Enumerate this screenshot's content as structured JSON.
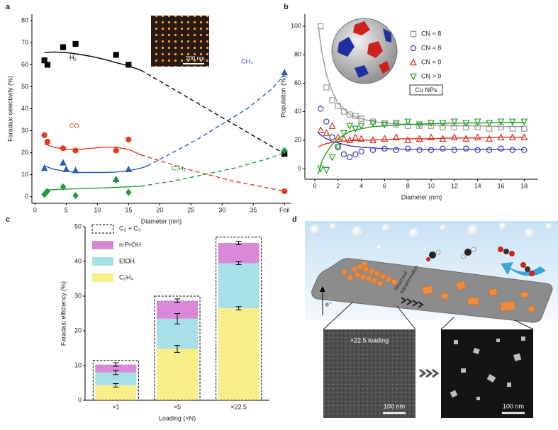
{
  "chart_data": [
    {
      "type": "scatter",
      "label": "a",
      "xlabel": "Diameter (nm)",
      "ylabel": "Faradaic selectivity (%)",
      "xlim": [
        -0.5,
        41
      ],
      "ylim": [
        -3,
        83
      ],
      "xticks": [
        0,
        5,
        10,
        15,
        20,
        25,
        30,
        35,
        {
          "value": 40,
          "label": "Foil"
        }
      ],
      "yticks": [
        0,
        10,
        20,
        30,
        40,
        50,
        60,
        70,
        80
      ],
      "inset_scale_bar": "200 nm",
      "series": [
        {
          "name": "H₂",
          "color": "#000000",
          "marker": "square",
          "filled": true,
          "x": [
            1.5,
            2,
            4.5,
            6.5,
            13,
            15,
            40
          ],
          "values": [
            62,
            60,
            68,
            69.5,
            64.5,
            60,
            19.5
          ],
          "fit": {
            "x": [
              1.5,
              3,
              5,
              7,
              9,
              11,
              13,
              15,
              17
            ],
            "values": [
              65.5,
              65.8,
              65.5,
              64.8,
              63.8,
              62.5,
              61,
              59.5,
              57.5
            ]
          },
          "extrapolation": {
            "x": [
              17,
              40
            ],
            "values": [
              57.5,
              19.5
            ]
          }
        },
        {
          "name": "CO",
          "color": "#e53a20",
          "marker": "circle",
          "filled": true,
          "x": [
            1.5,
            2,
            4.5,
            6.5,
            13,
            15,
            40
          ],
          "values": [
            28,
            25,
            22,
            21,
            21,
            26,
            2.5
          ],
          "fit": {
            "x": [
              1.5,
              3,
              5,
              7,
              9,
              11,
              13,
              15,
              17
            ],
            "values": [
              24,
              22.5,
              21.5,
              21.5,
              22,
              22.5,
              22.5,
              21.5,
              19
            ]
          },
          "extrapolation": {
            "x": [
              17,
              25,
              32,
              40
            ],
            "values": [
              19,
              12,
              7,
              2.5
            ]
          }
        },
        {
          "name": "CH₄",
          "color": "#2b5fb8",
          "marker": "triangle",
          "filled": true,
          "x": [
            1.5,
            4.5,
            5,
            6.5,
            13,
            15,
            40
          ],
          "values": [
            13,
            15.5,
            12.5,
            12,
            8,
            12.5,
            56.5
          ],
          "fit": {
            "x": [
              1.5,
              3,
              5,
              7,
              9,
              11,
              13,
              15,
              17,
              18
            ],
            "values": [
              14,
              12.5,
              11.5,
              11,
              11,
              11,
              11.2,
              11.8,
              13,
              14
            ]
          },
          "extrapolation": {
            "x": [
              18,
              22,
              26,
              30,
              34,
              38,
              40
            ],
            "values": [
              14,
              20,
              26,
              33,
              40,
              49,
              55.5
            ]
          }
        },
        {
          "name": "C₂H₄",
          "color": "#1f9a3a",
          "marker": "diamond",
          "filled": true,
          "x": [
            1.5,
            2,
            4.5,
            6.5,
            13,
            15,
            40
          ],
          "values": [
            1,
            2.5,
            4.5,
            0.5,
            7.5,
            2,
            21
          ],
          "fit": {
            "x": [
              1.5,
              5,
              9,
              13,
              17
            ],
            "values": [
              3,
              3.5,
              3.8,
              4.2,
              4.8
            ]
          },
          "extrapolation": {
            "x": [
              17,
              22,
              27,
              32,
              37,
              40
            ],
            "values": [
              4.8,
              7,
              10,
              13,
              17,
              20
            ]
          }
        }
      ]
    },
    {
      "type": "scatter",
      "label": "b",
      "xlabel": "Diameter (nm)",
      "ylabel": "Population (%)",
      "xlim": [
        -0.85,
        19.2
      ],
      "ylim": [
        -7.5,
        108.5
      ],
      "xticks": [
        0,
        2,
        4,
        6,
        8,
        10,
        12,
        14,
        16,
        18
      ],
      "yticks": [
        0,
        20,
        40,
        60,
        80,
        100
      ],
      "legend_note": "Cu NPs",
      "series": [
        {
          "name": "CN < 8",
          "color": "#9a9a9a",
          "marker": "square",
          "filled": false,
          "x": [
            0.5,
            1,
            1.5,
            2,
            2.5,
            3,
            3.5,
            4,
            5,
            6,
            7,
            8,
            9,
            10,
            11,
            12,
            13,
            14,
            15,
            16,
            17,
            18
          ],
          "values": [
            100,
            57,
            48,
            44,
            40,
            38,
            37,
            35,
            33,
            32,
            31,
            30,
            30,
            30,
            29,
            29,
            29,
            29,
            28,
            29,
            28,
            28
          ],
          "fit": {
            "x": [
              0.3,
              0.6,
              1,
              1.5,
              2,
              3,
              4,
              5,
              6,
              8,
              10,
              12,
              14,
              16,
              18
            ],
            "values": [
              100,
              82,
              66,
              54,
              46,
              38,
              35,
              33,
              32,
              31,
              30.5,
              30,
              30,
              29.5,
              29.5
            ]
          }
        },
        {
          "name": "CN = 8",
          "color": "#3a3ab8",
          "marker": "circle",
          "filled": false,
          "x": [
            0.5,
            1,
            1.5,
            2,
            2.5,
            3,
            3.5,
            4,
            5,
            6,
            7,
            8,
            9,
            10,
            11,
            12,
            13,
            14,
            15,
            16,
            17,
            18
          ],
          "values": [
            42,
            33,
            22,
            15,
            10,
            8,
            10,
            12,
            13,
            14,
            13,
            14,
            13,
            13,
            14,
            13,
            14,
            13,
            13,
            14,
            13,
            13
          ],
          "fit": {
            "x": [
              0.3,
              0.6,
              1,
              1.5,
              2,
              3,
              4,
              5,
              6,
              8,
              10,
              12,
              14,
              16,
              18
            ],
            "values": [
              25,
              23,
              21,
              19,
              18,
              16,
              15,
              14.5,
              14,
              13.5,
              13.5,
              13.5,
              13.5,
              13.5,
              13.5
            ]
          }
        },
        {
          "name": "CN = 9",
          "color": "#e03020",
          "marker": "triangle",
          "filled": false,
          "x": [
            0.5,
            1,
            1.5,
            2,
            2.5,
            3,
            3.5,
            4,
            5,
            6,
            7,
            8,
            9,
            10,
            11,
            12,
            13,
            14,
            15,
            16,
            17,
            18
          ],
          "values": [
            27,
            25,
            30,
            22,
            21,
            20,
            22,
            21,
            20,
            21,
            22,
            20,
            21,
            22,
            21,
            22,
            21,
            22,
            21,
            22,
            22,
            22
          ],
          "fit": {
            "x": [
              0.3,
              0.6,
              1,
              1.5,
              2,
              3,
              4,
              5,
              6,
              8,
              10,
              12,
              14,
              16,
              18
            ],
            "values": [
              15,
              16.5,
              17.5,
              18.5,
              19,
              19.5,
              20,
              20,
              20.5,
              21,
              21,
              21.5,
              21.5,
              22,
              22
            ]
          }
        },
        {
          "name": "CN > 9",
          "color": "#22a022",
          "marker": "triangle-down",
          "filled": false,
          "x": [
            0.5,
            1,
            1.5,
            2,
            2.5,
            3,
            3.5,
            4,
            5,
            6,
            7,
            8,
            9,
            10,
            11,
            12,
            13,
            14,
            15,
            16,
            17,
            18
          ],
          "values": [
            0,
            -1,
            8,
            15,
            25,
            30,
            28,
            30,
            32,
            31,
            32,
            33,
            31,
            32,
            32,
            33,
            32,
            33,
            32,
            33,
            33,
            33
          ],
          "fit": {
            "x": [
              0.3,
              0.6,
              1,
              1.5,
              2,
              3,
              4,
              5,
              6,
              8,
              10,
              12,
              14,
              16,
              18
            ],
            "values": [
              -4,
              5,
              11,
              17,
              21,
              26,
              28,
              29.5,
              30,
              31,
              31.5,
              32,
              32,
              32.5,
              32.5
            ]
          }
        }
      ]
    },
    {
      "type": "stacked_bar",
      "label": "c",
      "xlabel": "Loading (×N)",
      "ylabel": "Faradaic efficiency (%)",
      "categories": [
        "×1",
        "×5",
        "×22.5"
      ],
      "ylim": [
        0,
        50
      ],
      "yticks": [
        0,
        10,
        20,
        30,
        40,
        50
      ],
      "total": {
        "name": "C₂ + C₃",
        "values": [
          11.5,
          30,
          47
        ]
      },
      "series": [
        {
          "name": "C₂H₄",
          "color": "#f9ee87",
          "values": [
            4.3,
            14.8,
            26.5
          ],
          "errors": [
            0.5,
            1,
            0.5
          ]
        },
        {
          "name": "EtOH",
          "color": "#a8e0e8",
          "values": [
            3.7,
            8.7,
            13
          ],
          "errors": [
            0.6,
            1.5,
            0.4
          ]
        },
        {
          "name": "n-PrOH",
          "color": "#d98ad6",
          "values": [
            2.3,
            5.2,
            5.8
          ],
          "errors": [
            0.5,
            0.5,
            0.5
          ]
        }
      ]
    }
  ],
  "diagram": {
    "label": "d",
    "electron": "e⁻",
    "transformation_label": [
      "Structural",
      "transformation"
    ],
    "loading_label": "×22.5 loading",
    "scale_bars": [
      "100 nm",
      "100 nm"
    ]
  }
}
